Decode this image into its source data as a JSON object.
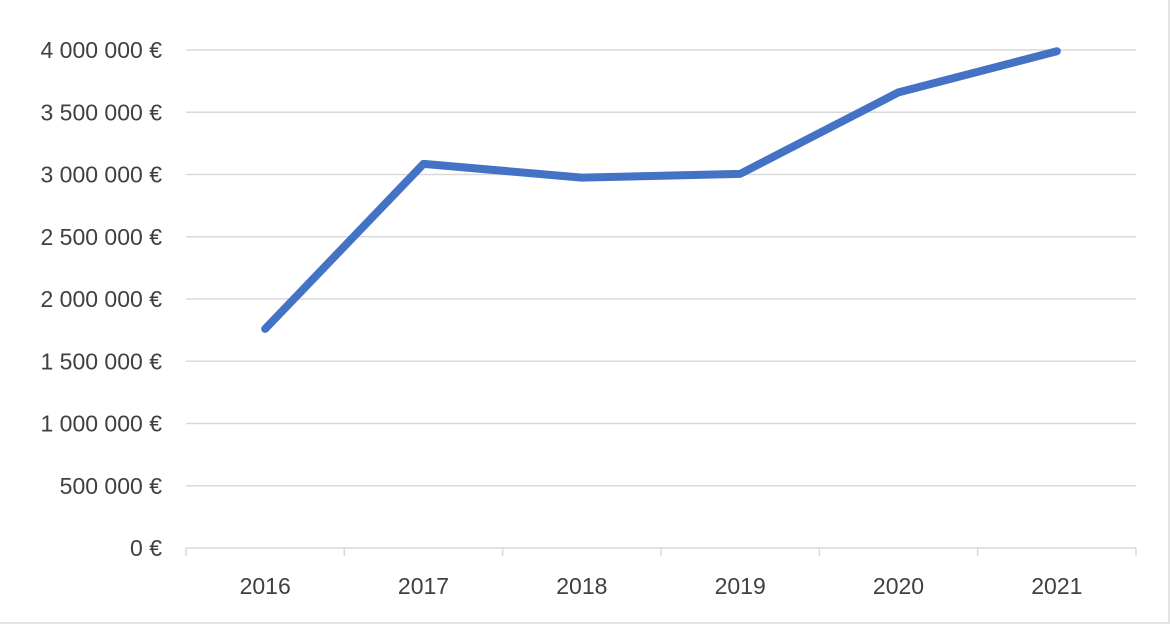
{
  "chart_data": {
    "type": "line",
    "title": "",
    "xlabel": "",
    "ylabel": "",
    "categories": [
      "2016",
      "2017",
      "2018",
      "2019",
      "2020",
      "2021"
    ],
    "series": [
      {
        "values": [
          1760000,
          3085000,
          2975000,
          3005000,
          3660000,
          3990000
        ],
        "color": "#4472c4"
      }
    ],
    "ylim": [
      0,
      4000000
    ],
    "yticks": [
      0,
      500000,
      1000000,
      1500000,
      2000000,
      2500000,
      3000000,
      3500000,
      4000000
    ],
    "ytick_labels": [
      "0 €",
      "500 000 €",
      "1 000 000 €",
      "1 500 000 €",
      "2 000 000 €",
      "2 500 000 €",
      "3 000 000 €",
      "3 500 000 €",
      "4 000 000 €"
    ],
    "grid": true,
    "legend": "none",
    "colors": {
      "line": "#4472c4",
      "grid": "#d9d9d9",
      "axis": "#d9d9d9",
      "text": "#404040"
    }
  }
}
